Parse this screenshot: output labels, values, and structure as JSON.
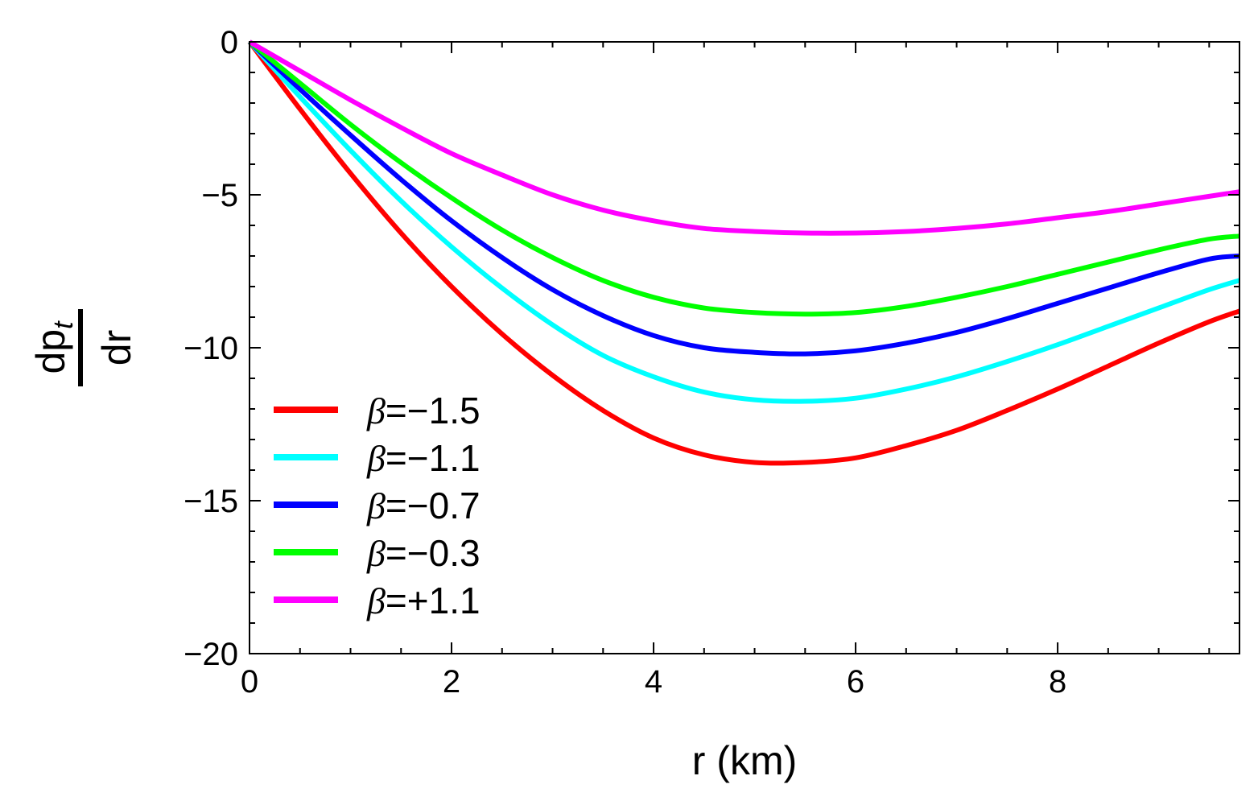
{
  "chart_data": {
    "type": "line",
    "title": "",
    "xlabel": "r (km)",
    "ylabel": {
      "numerator": "dp",
      "subscript": "t",
      "denominator": "dr"
    },
    "xlim": [
      0,
      9.8
    ],
    "ylim": [
      -20,
      0
    ],
    "x_ticks": [
      0,
      2,
      4,
      6,
      8
    ],
    "y_ticks": [
      0,
      -5,
      -10,
      -15,
      -20
    ],
    "x_tick_labels": [
      "0",
      "2",
      "4",
      "6",
      "8"
    ],
    "y_tick_labels": [
      "0",
      "−5",
      "−10",
      "−15",
      "−20"
    ],
    "grid": false,
    "legend_position": "bottom-left",
    "x": [
      0,
      0.5,
      1,
      1.5,
      2,
      2.5,
      3,
      3.5,
      4,
      4.5,
      5,
      5.5,
      6,
      6.5,
      7,
      7.5,
      8,
      8.5,
      9,
      9.5,
      9.8
    ],
    "series": [
      {
        "name": "β=−1.5",
        "symbol": "β",
        "value_text": "=−1.5",
        "color": "#ff0000",
        "values": [
          0,
          -2.2,
          -4.3,
          -6.25,
          -8.0,
          -9.55,
          -10.9,
          -12.05,
          -12.95,
          -13.5,
          -13.75,
          -13.75,
          -13.6,
          -13.2,
          -12.7,
          -12.05,
          -11.35,
          -10.6,
          -9.85,
          -9.15,
          -8.8
        ]
      },
      {
        "name": "β=−1.1",
        "symbol": "β",
        "value_text": "=−1.1",
        "color": "#00ffff",
        "values": [
          0,
          -1.8,
          -3.55,
          -5.2,
          -6.7,
          -8.05,
          -9.25,
          -10.25,
          -10.95,
          -11.45,
          -11.7,
          -11.75,
          -11.65,
          -11.35,
          -10.95,
          -10.45,
          -9.9,
          -9.3,
          -8.7,
          -8.1,
          -7.8
        ]
      },
      {
        "name": "β=−0.7",
        "symbol": "β",
        "value_text": "=−0.7",
        "color": "#0000ff",
        "values": [
          0,
          -1.55,
          -3.05,
          -4.5,
          -5.85,
          -7.05,
          -8.1,
          -8.95,
          -9.6,
          -10.0,
          -10.15,
          -10.2,
          -10.1,
          -9.85,
          -9.5,
          -9.05,
          -8.55,
          -8.05,
          -7.55,
          -7.1,
          -7.0
        ]
      },
      {
        "name": "β=−0.3",
        "symbol": "β",
        "value_text": "=−0.3",
        "color": "#00ff00",
        "values": [
          0,
          -1.35,
          -2.7,
          -3.95,
          -5.1,
          -6.15,
          -7.05,
          -7.8,
          -8.35,
          -8.7,
          -8.85,
          -8.9,
          -8.85,
          -8.65,
          -8.35,
          -8.0,
          -7.6,
          -7.2,
          -6.8,
          -6.45,
          -6.35
        ]
      },
      {
        "name": "β=+1.1",
        "symbol": "β",
        "value_text": "=+1.1",
        "color": "#ff00ff",
        "values": [
          0,
          -0.95,
          -1.9,
          -2.8,
          -3.65,
          -4.35,
          -5.0,
          -5.5,
          -5.85,
          -6.1,
          -6.2,
          -6.25,
          -6.25,
          -6.2,
          -6.1,
          -5.95,
          -5.75,
          -5.55,
          -5.3,
          -5.05,
          -4.9
        ]
      }
    ]
  }
}
